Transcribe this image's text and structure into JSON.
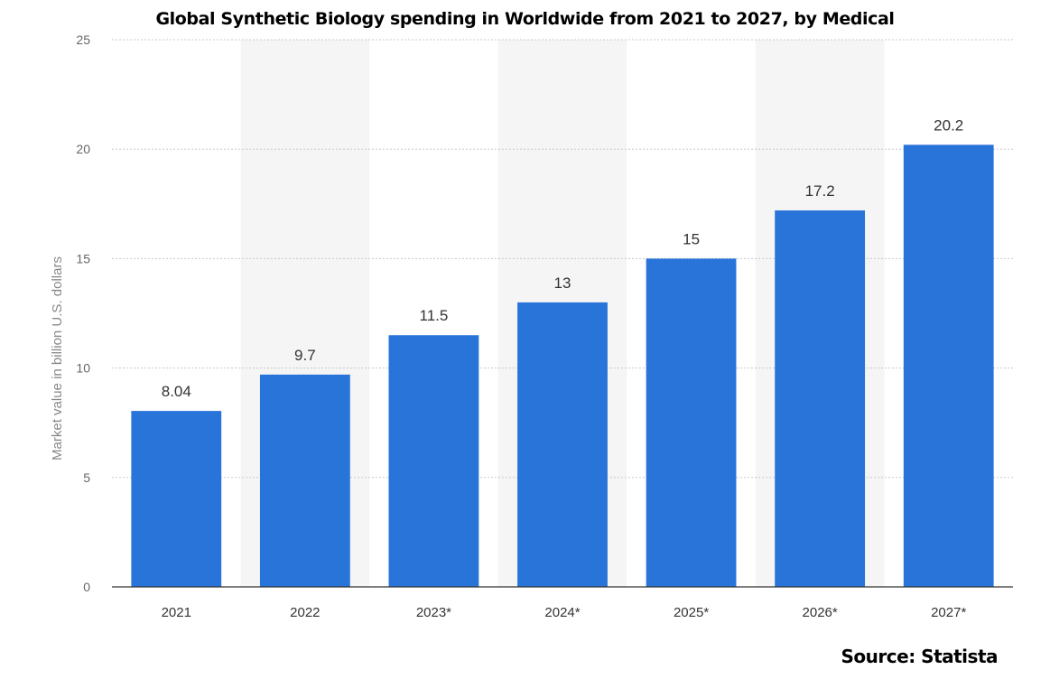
{
  "chart_data": {
    "type": "bar",
    "title": "Global Synthetic Biology spending in Worldwide from 2021 to 2027, by Medical",
    "ylabel": "Market value in billion U.S. dollars",
    "xlabel": "",
    "categories": [
      "2021",
      "2022",
      "2023*",
      "2024*",
      "2025*",
      "2026*",
      "2027*"
    ],
    "values": [
      8.04,
      9.7,
      11.5,
      13,
      15,
      17.2,
      20.2
    ],
    "value_labels": [
      "8.04",
      "9.7",
      "11.5",
      "13",
      "15",
      "17.2",
      "20.2"
    ],
    "ylim": [
      0,
      25
    ],
    "yticks": [
      "0",
      "5",
      "10",
      "15",
      "20",
      "25"
    ],
    "grid": true,
    "legend": "none",
    "bar_color": "#2874d9",
    "band_color": "#f5f5f5"
  },
  "source": "Source: Statista"
}
